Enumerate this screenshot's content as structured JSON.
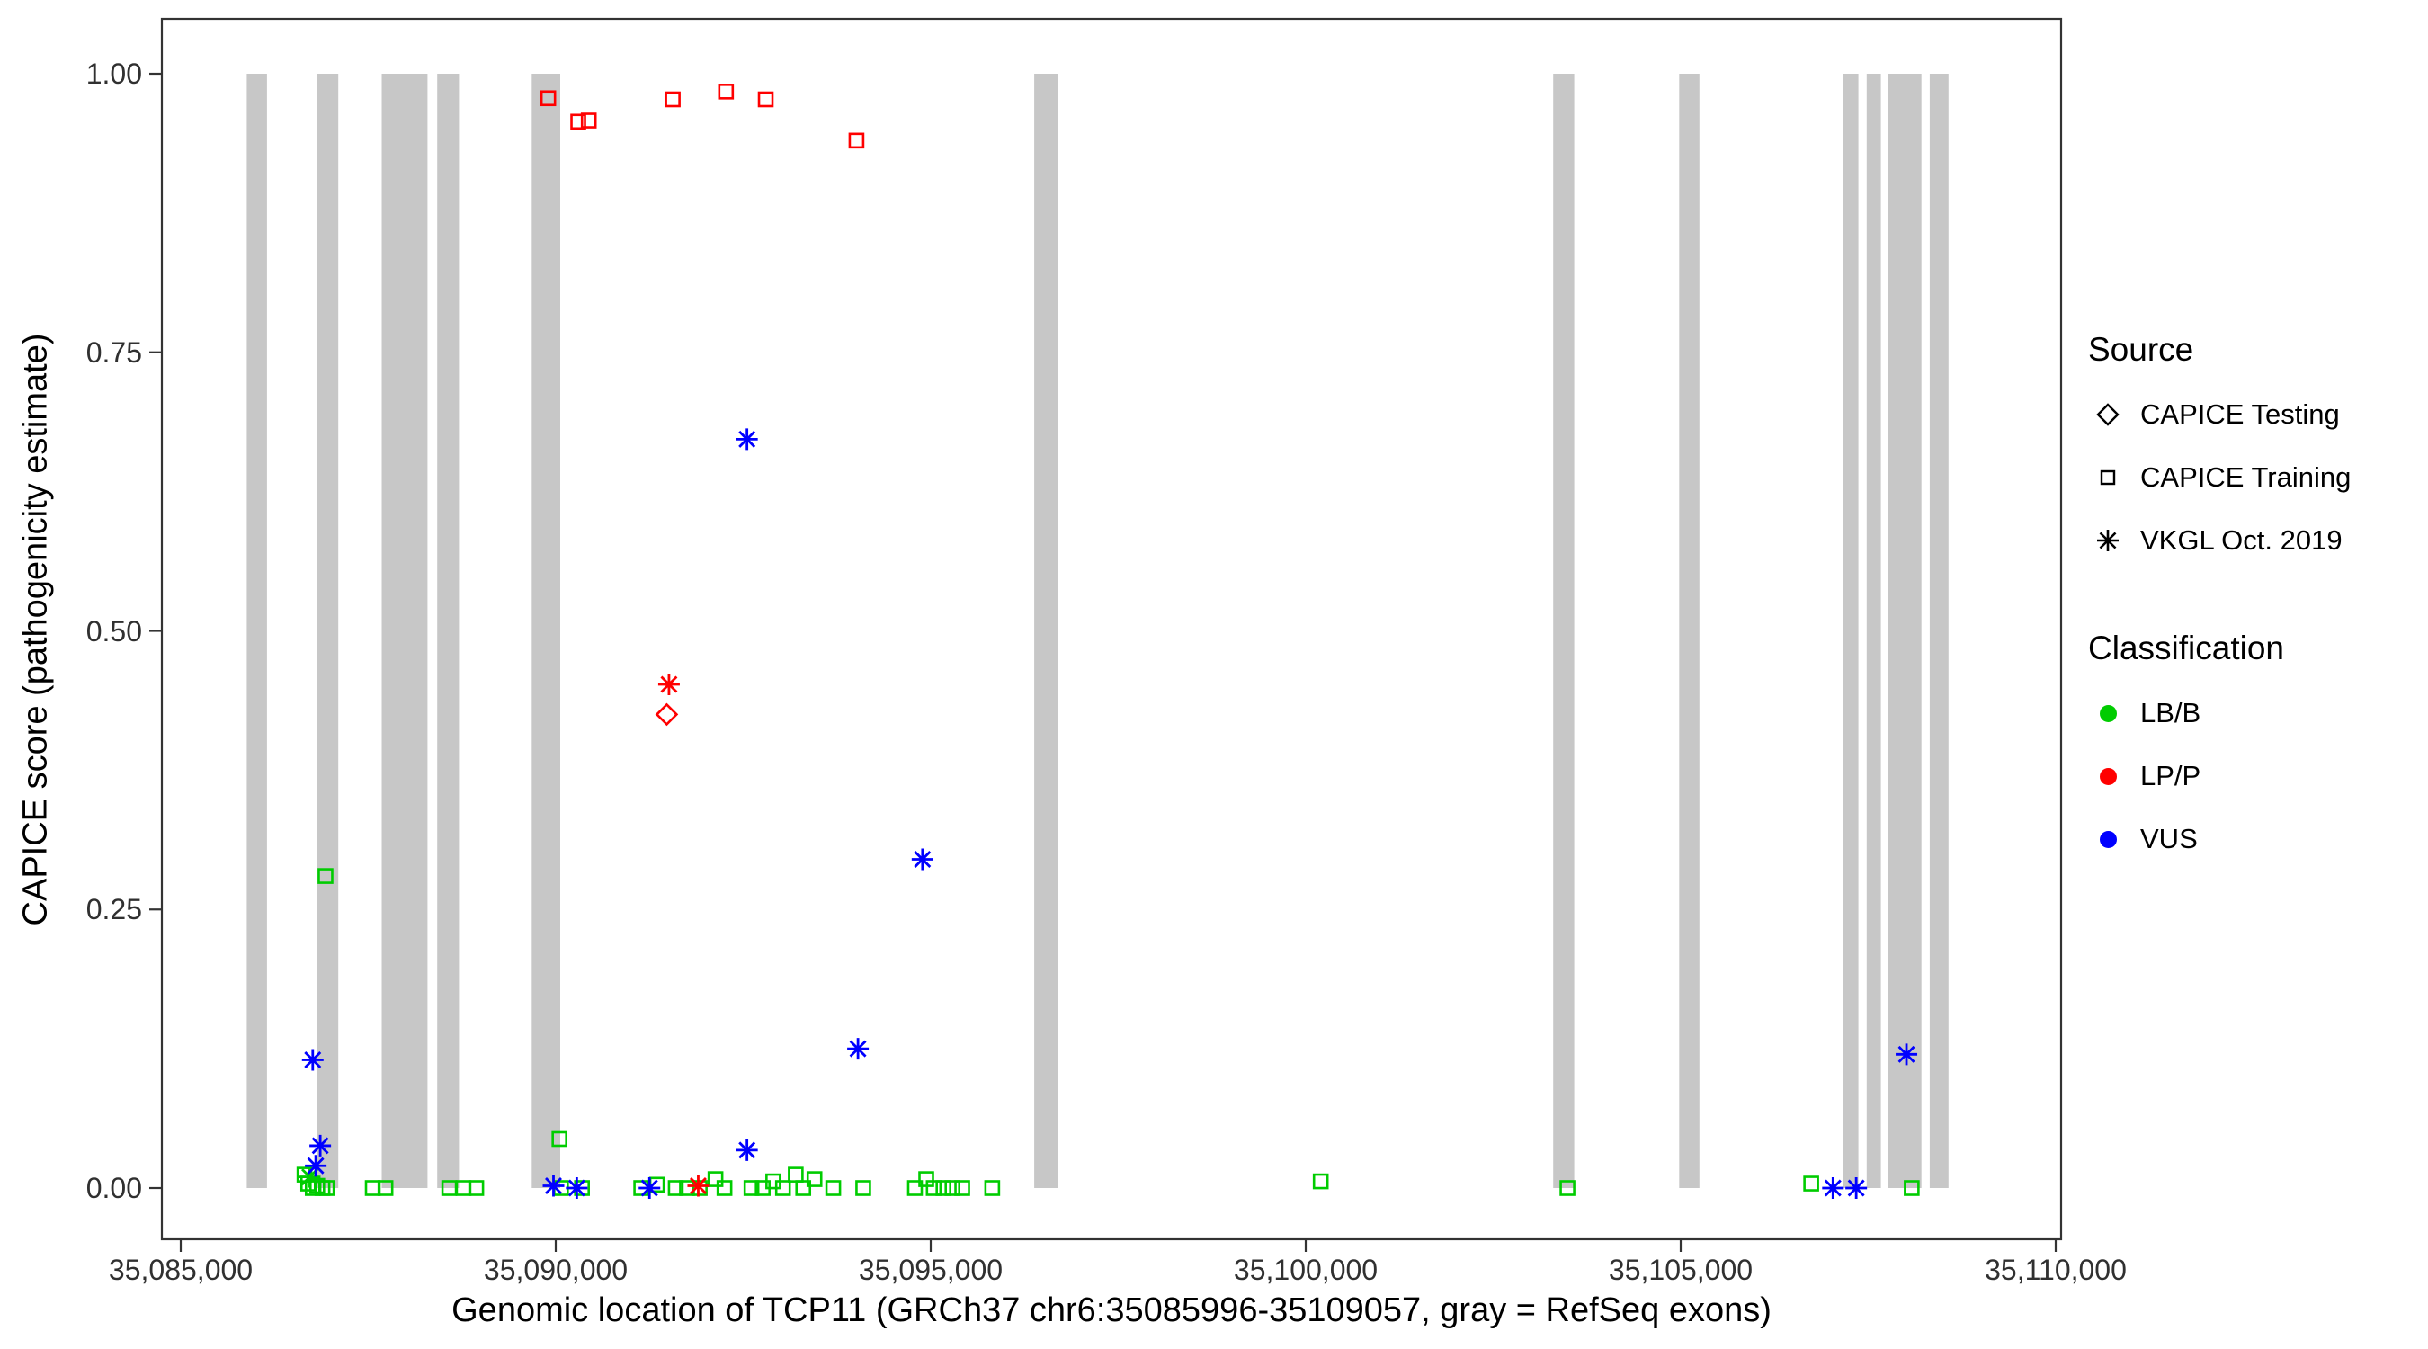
{
  "chart_data": {
    "type": "scatter",
    "title": "",
    "xlabel": "Genomic location of TCP11 (GRCh37 chr6:35085996-35109057, gray = RefSeq exons)",
    "ylabel": "CAPICE score (pathogenicity estimate)",
    "x_domain": [
      35085000,
      35110000
    ],
    "y_domain": [
      0.0,
      1.0
    ],
    "grid": false,
    "legend_position": "right",
    "x_ticks": [
      {
        "value": 35085000,
        "label": "35,085,000"
      },
      {
        "value": 35090000,
        "label": "35,090,000"
      },
      {
        "value": 35095000,
        "label": "35,095,000"
      },
      {
        "value": 35100000,
        "label": "35,100,000"
      },
      {
        "value": 35105000,
        "label": "35,105,000"
      },
      {
        "value": 35110000,
        "label": "35,110,000"
      }
    ],
    "y_ticks": [
      {
        "value": 0.0,
        "label": "0.00"
      },
      {
        "value": 0.25,
        "label": "0.25"
      },
      {
        "value": 0.5,
        "label": "0.50"
      },
      {
        "value": 0.75,
        "label": "0.75"
      },
      {
        "value": 1.0,
        "label": "1.00"
      }
    ],
    "exon_color": "#C7C7C7",
    "exons": [
      [
        35085880,
        35086150
      ],
      [
        35086820,
        35087100
      ],
      [
        35087680,
        35088290
      ],
      [
        35088420,
        35088710
      ],
      [
        35089680,
        35090060
      ],
      [
        35096380,
        35096700
      ],
      [
        35103300,
        35103580
      ],
      [
        35104980,
        35105250
      ],
      [
        35107160,
        35107370
      ],
      [
        35107480,
        35107670
      ],
      [
        35107770,
        35108210
      ],
      [
        35108320,
        35108570
      ]
    ],
    "classification_colors": {
      "LB/B": "#00CC00",
      "LP/P": "#FF0000",
      "VUS": "#0000FF"
    },
    "source_shapes": {
      "test": "diamond",
      "train": "square",
      "vkgl": "asterisk"
    },
    "source_labels": {
      "test": "CAPICE Testing",
      "train": "CAPICE Training",
      "vkgl": "VKGL Oct. 2019"
    },
    "points_format": [
      "x_genomic_position",
      "capice_score",
      "source",
      "classification"
    ],
    "points": [
      [
        35086930,
        0.28,
        "train",
        "LB/B"
      ],
      [
        35086650,
        0.012,
        "train",
        "LB/B"
      ],
      [
        35086700,
        0.004,
        "train",
        "LB/B"
      ],
      [
        35086760,
        0.0,
        "train",
        "LB/B"
      ],
      [
        35086820,
        0.002,
        "train",
        "LB/B"
      ],
      [
        35086890,
        0.0,
        "train",
        "LB/B"
      ],
      [
        35086950,
        0.0,
        "train",
        "LB/B"
      ],
      [
        35087560,
        0.0,
        "train",
        "LB/B"
      ],
      [
        35087730,
        0.0,
        "train",
        "LB/B"
      ],
      [
        35088580,
        0.0,
        "train",
        "LB/B"
      ],
      [
        35088770,
        0.0,
        "train",
        "LB/B"
      ],
      [
        35088940,
        0.0,
        "train",
        "LB/B"
      ],
      [
        35090050,
        0.044,
        "train",
        "LB/B"
      ],
      [
        35090070,
        0.0,
        "train",
        "LB/B"
      ],
      [
        35090350,
        0.0,
        "train",
        "LB/B"
      ],
      [
        35091140,
        0.0,
        "train",
        "LB/B"
      ],
      [
        35091350,
        0.003,
        "train",
        "LB/B"
      ],
      [
        35091600,
        0.0,
        "train",
        "LB/B"
      ],
      [
        35091750,
        0.0,
        "train",
        "LB/B"
      ],
      [
        35091920,
        0.0,
        "train",
        "LB/B"
      ],
      [
        35092130,
        0.008,
        "train",
        "LB/B"
      ],
      [
        35092250,
        0.0,
        "train",
        "LB/B"
      ],
      [
        35092610,
        0.0,
        "train",
        "LB/B"
      ],
      [
        35092760,
        0.0,
        "train",
        "LB/B"
      ],
      [
        35092900,
        0.006,
        "train",
        "LB/B"
      ],
      [
        35093030,
        0.0,
        "train",
        "LB/B"
      ],
      [
        35093200,
        0.012,
        "train",
        "LB/B"
      ],
      [
        35093300,
        0.0,
        "train",
        "LB/B"
      ],
      [
        35093450,
        0.008,
        "train",
        "LB/B"
      ],
      [
        35093700,
        0.0,
        "train",
        "LB/B"
      ],
      [
        35094100,
        0.0,
        "train",
        "LB/B"
      ],
      [
        35094790,
        0.0,
        "train",
        "LB/B"
      ],
      [
        35094940,
        0.008,
        "train",
        "LB/B"
      ],
      [
        35095040,
        0.0,
        "train",
        "LB/B"
      ],
      [
        35095170,
        0.0,
        "train",
        "LB/B"
      ],
      [
        35095290,
        0.0,
        "train",
        "LB/B"
      ],
      [
        35095420,
        0.0,
        "train",
        "LB/B"
      ],
      [
        35095820,
        0.0,
        "train",
        "LB/B"
      ],
      [
        35100200,
        0.006,
        "train",
        "LB/B"
      ],
      [
        35103490,
        0.0,
        "train",
        "LB/B"
      ],
      [
        35106740,
        0.004,
        "train",
        "LB/B"
      ],
      [
        35108080,
        0.0,
        "train",
        "LB/B"
      ],
      [
        35089900,
        0.978,
        "train",
        "LP/P"
      ],
      [
        35090300,
        0.957,
        "train",
        "LP/P"
      ],
      [
        35090440,
        0.958,
        "train",
        "LP/P"
      ],
      [
        35091560,
        0.977,
        "train",
        "LP/P"
      ],
      [
        35092270,
        0.984,
        "train",
        "LP/P"
      ],
      [
        35092800,
        0.977,
        "train",
        "LP/P"
      ],
      [
        35094010,
        0.94,
        "train",
        "LP/P"
      ],
      [
        35091480,
        0.425,
        "test",
        "LP/P"
      ],
      [
        35091510,
        0.452,
        "vkgl",
        "LP/P"
      ],
      [
        35091900,
        0.002,
        "vkgl",
        "LP/P"
      ],
      [
        35086720,
        0.01,
        "vkgl",
        "LB/B"
      ],
      [
        35092550,
        0.672,
        "vkgl",
        "VUS"
      ],
      [
        35094890,
        0.295,
        "vkgl",
        "VUS"
      ],
      [
        35094030,
        0.125,
        "vkgl",
        "VUS"
      ],
      [
        35086760,
        0.115,
        "vkgl",
        "VUS"
      ],
      [
        35086860,
        0.038,
        "vkgl",
        "VUS"
      ],
      [
        35086800,
        0.02,
        "vkgl",
        "VUS"
      ],
      [
        35092550,
        0.034,
        "vkgl",
        "VUS"
      ],
      [
        35089970,
        0.002,
        "vkgl",
        "VUS"
      ],
      [
        35090280,
        0.0,
        "vkgl",
        "VUS"
      ],
      [
        35091250,
        0.0,
        "vkgl",
        "VUS"
      ],
      [
        35107030,
        0.0,
        "vkgl",
        "VUS"
      ],
      [
        35107340,
        0.0,
        "vkgl",
        "VUS"
      ],
      [
        35108010,
        0.12,
        "vkgl",
        "VUS"
      ]
    ]
  },
  "legend": {
    "source": {
      "title": "Source",
      "items": [
        {
          "label": "CAPICE Testing",
          "shape": "diamond"
        },
        {
          "label": "CAPICE Training",
          "shape": "square"
        },
        {
          "label": "VKGL Oct. 2019",
          "shape": "asterisk"
        }
      ]
    },
    "classification": {
      "title": "Classification",
      "items": [
        {
          "label": "LB/B",
          "color": "#00CC00"
        },
        {
          "label": "LP/P",
          "color": "#FF0000"
        },
        {
          "label": "VUS",
          "color": "#0000FF"
        }
      ]
    }
  }
}
